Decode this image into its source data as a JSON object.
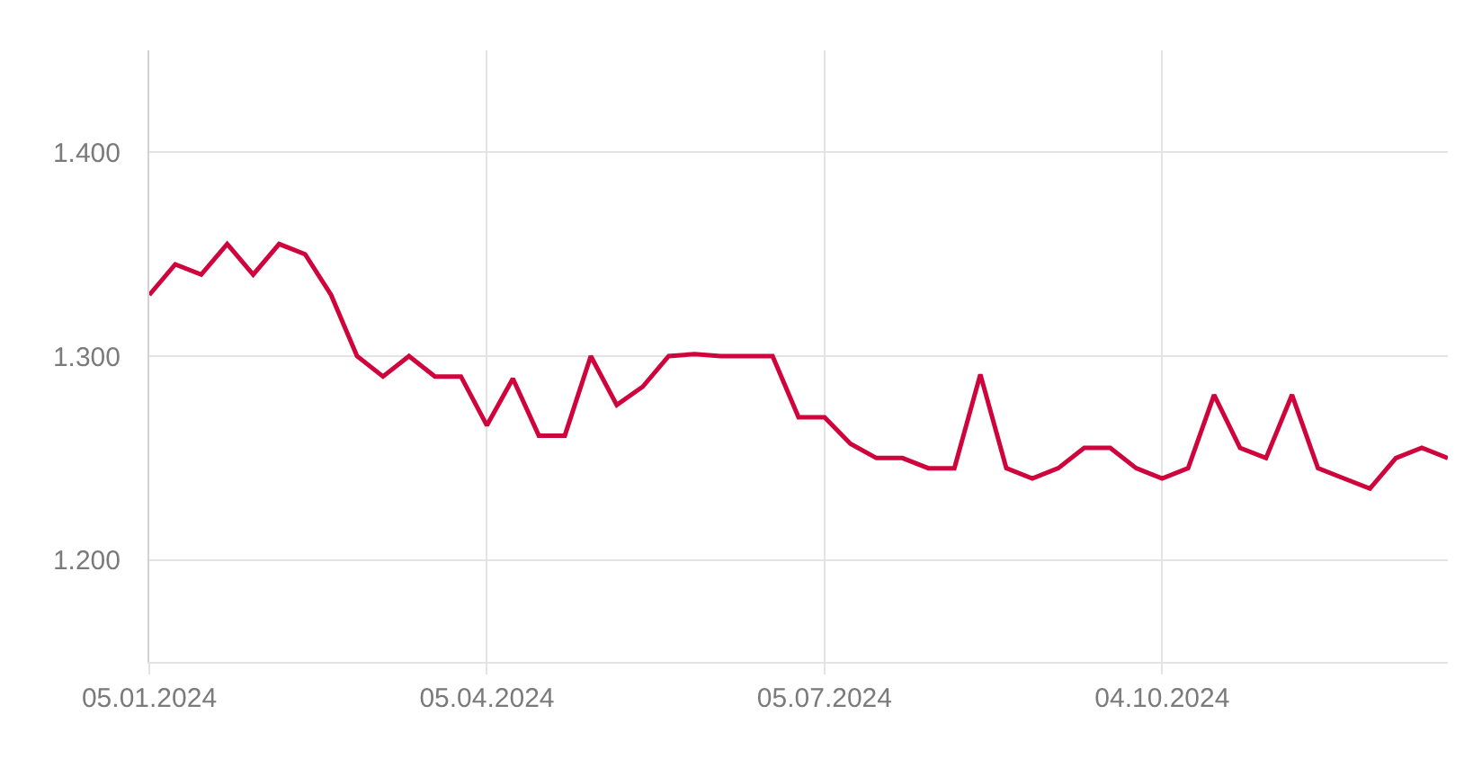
{
  "chart_data": {
    "type": "line",
    "x": [
      "2024-01-05",
      "2024-01-12",
      "2024-01-19",
      "2024-01-26",
      "2024-02-02",
      "2024-02-09",
      "2024-02-16",
      "2024-02-23",
      "2024-03-01",
      "2024-03-08",
      "2024-03-15",
      "2024-03-22",
      "2024-03-29",
      "2024-04-05",
      "2024-04-12",
      "2024-04-19",
      "2024-04-26",
      "2024-05-03",
      "2024-05-10",
      "2024-05-17",
      "2024-05-24",
      "2024-05-31",
      "2024-06-07",
      "2024-06-14",
      "2024-06-21",
      "2024-06-28",
      "2024-07-05",
      "2024-07-12",
      "2024-07-19",
      "2024-07-26",
      "2024-08-02",
      "2024-08-09",
      "2024-08-16",
      "2024-08-23",
      "2024-08-30",
      "2024-09-06",
      "2024-09-13",
      "2024-09-20",
      "2024-09-27",
      "2024-10-04",
      "2024-10-11",
      "2024-10-18",
      "2024-10-25",
      "2024-11-01",
      "2024-11-08",
      "2024-11-15",
      "2024-11-22",
      "2024-11-29",
      "2024-12-06",
      "2024-12-13",
      "2024-12-20"
    ],
    "series": [
      {
        "color": "#d0043c",
        "values": [
          1.33,
          1.345,
          1.34,
          1.355,
          1.34,
          1.355,
          1.35,
          1.33,
          1.3,
          1.29,
          1.3,
          1.29,
          1.29,
          1.266,
          1.289,
          1.261,
          1.261,
          1.3,
          1.276,
          1.285,
          1.3,
          1.301,
          1.3,
          1.3,
          1.3,
          1.27,
          1.27,
          1.257,
          1.25,
          1.25,
          1.245,
          1.245,
          1.291,
          1.245,
          1.24,
          1.245,
          1.255,
          1.255,
          1.245,
          1.24,
          1.245,
          1.281,
          1.255,
          1.25,
          1.281,
          1.245,
          1.24,
          1.235,
          1.25,
          1.255,
          1.25
        ]
      }
    ],
    "xlim": [
      "2024-01-05",
      "2024-12-20"
    ],
    "xticks": [
      {
        "value": "2024-01-05",
        "label": "05.01.2024"
      },
      {
        "value": "2024-04-05",
        "label": "05.04.2024"
      },
      {
        "value": "2024-07-05",
        "label": "05.07.2024"
      },
      {
        "value": "2024-10-04",
        "label": "04.10.2024"
      }
    ],
    "ylim": [
      1.15,
      1.45
    ],
    "yticks": [
      {
        "value": 1.2,
        "label": "1.200"
      },
      {
        "value": 1.3,
        "label": "1.300"
      },
      {
        "value": 1.4,
        "label": "1.400"
      }
    ],
    "grid": true,
    "marker": "none",
    "line_style": "solid"
  }
}
